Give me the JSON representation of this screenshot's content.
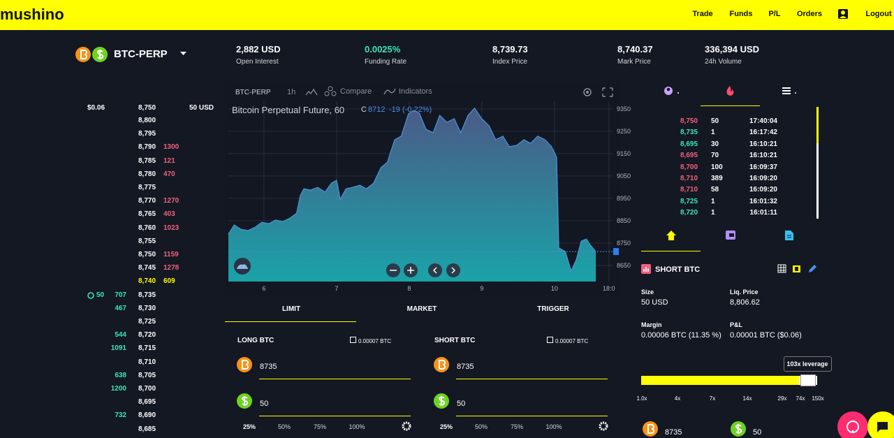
{
  "header": {
    "brand": "mushino",
    "nav": [
      "Trade",
      "Funds",
      "P/L",
      "Orders",
      "Logout"
    ]
  },
  "market": {
    "symbol": "BTC-PERP",
    "stats": [
      {
        "value": "2,882 USD",
        "label": "Open Interest",
        "color": "#ffffff"
      },
      {
        "value": "0.0025%",
        "label": "Funding Rate",
        "color": "#3ee6b5"
      },
      {
        "value": "8,739.73",
        "label": "Index Price",
        "color": "#ffffff"
      },
      {
        "value": "8,740.37",
        "label": "Mark Price",
        "color": "#ffffff"
      },
      {
        "value": "336,394 USD",
        "label": "24h Volume",
        "color": "#ffffff"
      }
    ]
  },
  "order_book": {
    "header": {
      "pnl": "$0.06",
      "price": "8,750",
      "size": "50 USD"
    },
    "rows": [
      {
        "price": "8,800"
      },
      {
        "price": "8,795"
      },
      {
        "price": "8,790",
        "ask": "1300"
      },
      {
        "price": "8,785",
        "ask": "121"
      },
      {
        "price": "8,780",
        "ask": "470"
      },
      {
        "price": "8,775"
      },
      {
        "price": "8,770",
        "ask": "1270"
      },
      {
        "price": "8,765",
        "ask": "403"
      },
      {
        "price": "8,760",
        "ask": "1023"
      },
      {
        "price": "8,755"
      },
      {
        "price": "8,750",
        "ask": "1159"
      },
      {
        "price": "8,745",
        "ask": "1278"
      },
      {
        "price": "8,740",
        "ask": "609",
        "highlight": true
      },
      {
        "position": "50",
        "bid": "707",
        "price": "8,735"
      },
      {
        "bid": "467",
        "price": "8,730"
      },
      {
        "price": "8,725"
      },
      {
        "bid": "544",
        "price": "8,720"
      },
      {
        "bid": "1091",
        "price": "8,715"
      },
      {
        "price": "8,710"
      },
      {
        "bid": "638",
        "price": "8,705"
      },
      {
        "bid": "1200",
        "price": "8,700"
      },
      {
        "price": "8,695"
      },
      {
        "bid": "732",
        "price": "8,690"
      },
      {
        "price": "8,685"
      }
    ]
  },
  "price_chart": {
    "type": "area",
    "toolbar": {
      "symbol": "BTC-PERP",
      "interval": "1h",
      "compare": "Compare",
      "indicators": "Indicators"
    },
    "legend": {
      "title": "Bitcoin Perpetual Future, 60",
      "close_label": "C",
      "close": "8712",
      "change": "-19 (-0.22%)"
    },
    "x": [
      5.51,
      5.59,
      5.68,
      5.78,
      5.88,
      5.97,
      6.07,
      6.16,
      6.26,
      6.36,
      6.45,
      6.5,
      6.55,
      6.64,
      6.74,
      6.84,
      6.93,
      7.0,
      7.05,
      7.13,
      7.22,
      7.32,
      7.41,
      7.51,
      7.61,
      7.7,
      7.8,
      7.89,
      7.99,
      8.06,
      8.14,
      8.23,
      8.33,
      8.42,
      8.52,
      8.62,
      8.71,
      8.81,
      8.9,
      9.0,
      9.1,
      9.19,
      9.29,
      9.38,
      9.48,
      9.58,
      9.67,
      9.77,
      9.87,
      9.96,
      10.03,
      10.06,
      10.15,
      10.23,
      10.3,
      10.37,
      10.44,
      10.49,
      10.57
    ],
    "values": [
      8790,
      8831,
      8812,
      8806,
      8821,
      8843,
      8837,
      8853,
      8846,
      8862,
      8884,
      8962,
      8993,
      8987,
      8999,
      8978,
      9018,
      9031,
      8946,
      8993,
      8999,
      9009,
      8993,
      9018,
      9087,
      9112,
      9212,
      9228,
      9328,
      9343,
      9331,
      9259,
      9243,
      9321,
      9290,
      9306,
      9243,
      9321,
      9353,
      9306,
      9274,
      9212,
      9228,
      9181,
      9187,
      9212,
      9196,
      9228,
      9212,
      9181,
      9134,
      8728,
      8712,
      8625,
      8675,
      8759,
      8768,
      8743,
      8712
    ],
    "xlim": [
      5.51,
      10.8
    ],
    "ylim": [
      8578,
      9384
    ],
    "xticks": [
      6,
      7,
      8,
      9,
      10,
      {
        "value": 10.75,
        "label": "18:0"
      }
    ],
    "yticks": [
      8650,
      8750,
      8850,
      8950,
      9050,
      9150,
      9250,
      9350
    ],
    "line_color": "#4a8fd6",
    "grid": true
  },
  "order_form": {
    "tabs": [
      "LIMIT",
      "MARKET",
      "TRIGGER"
    ],
    "panels": [
      {
        "title": "LONG BTC",
        "balance": "0.00007 BTC",
        "price": "8735",
        "size": "50",
        "percents": [
          "25%",
          "50%",
          "75%",
          "100%"
        ]
      },
      {
        "title": "SHORT BTC",
        "balance": "0.00007 BTC",
        "price": "8735",
        "size": "50",
        "percents": [
          "25%",
          "50%",
          "75%",
          "100%"
        ]
      }
    ]
  },
  "trades": [
    {
      "price": "8,750",
      "size": "50",
      "time": "17:40:04",
      "color": "#f0607f"
    },
    {
      "price": "8,735",
      "size": "1",
      "time": "16:17:42",
      "color": "#3ee6b5"
    },
    {
      "price": "8,695",
      "size": "30",
      "time": "16:10:21",
      "color": "#3ee6b5"
    },
    {
      "price": "8,695",
      "size": "70",
      "time": "16:10:21",
      "color": "#f0607f"
    },
    {
      "price": "8,700",
      "size": "100",
      "time": "16:09:37",
      "color": "#f0607f"
    },
    {
      "price": "8,710",
      "size": "389",
      "time": "16:09:20",
      "color": "#f0607f"
    },
    {
      "price": "8,710",
      "size": "58",
      "time": "16:09:20",
      "color": "#f0607f"
    },
    {
      "price": "8,725",
      "size": "1",
      "time": "16:01:32",
      "color": "#3ee6b5"
    },
    {
      "price": "8,720",
      "size": "1",
      "time": "16:01:11",
      "color": "#3ee6b5"
    }
  ],
  "position": {
    "title": "SHORT BTC",
    "fields": [
      {
        "label": "Size",
        "value": "50 USD"
      },
      {
        "label": "Liq. Price",
        "value": "8,806.62"
      },
      {
        "label": "Margin",
        "value": "0.00006 BTC (11.35 %)"
      },
      {
        "label": "P&L",
        "value": "0.00001 BTC ($0.06)"
      }
    ],
    "leverage_tooltip": "103x leverage",
    "leverage_scale": [
      "1.0x",
      "4x",
      "7x",
      "14x",
      "29x",
      "74x",
      "150x"
    ],
    "price": "8735",
    "size": "50"
  }
}
